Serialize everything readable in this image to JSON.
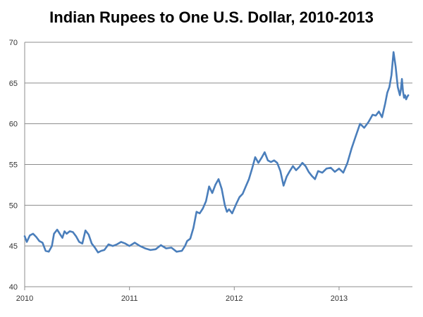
{
  "chart_data": {
    "type": "line",
    "title": "Indian Rupees to One U.S. Dollar, 2010-2013",
    "xlabel": "",
    "ylabel": "",
    "ylim": [
      40,
      70
    ],
    "y_ticks": [
      "40",
      "45",
      "50",
      "55",
      "60",
      "65",
      "70"
    ],
    "x_ticks": [
      "2010",
      "2011",
      "2012",
      "2013"
    ],
    "xlim": [
      2010.0,
      2013.7
    ],
    "grid": "horizontal",
    "colors": {
      "line": "#4a7ebb",
      "grid": "#8c8c8c"
    },
    "series": [
      {
        "x": [
          2010.0,
          2010.02,
          2010.05,
          2010.08,
          2010.11,
          2010.14,
          2010.17,
          2010.2,
          2010.23,
          2010.26,
          2010.28,
          2010.31,
          2010.34,
          2010.36,
          2010.38,
          2010.4,
          2010.43,
          2010.46,
          2010.49,
          2010.52,
          2010.55,
          2010.58,
          2010.61,
          2010.64,
          2010.67,
          2010.7,
          2010.73,
          2010.76,
          2010.8,
          2010.84,
          2010.88,
          2010.92,
          2010.96,
          2011.0,
          2011.05,
          2011.1,
          2011.15,
          2011.2,
          2011.25,
          2011.3,
          2011.35,
          2011.4,
          2011.45,
          2011.5,
          2011.53,
          2011.55,
          2011.58,
          2011.61,
          2011.64,
          2011.67,
          2011.7,
          2011.73,
          2011.76,
          2011.79,
          2011.82,
          2011.85,
          2011.88,
          2011.91,
          2011.93,
          2011.95,
          2011.98,
          2012.02,
          2012.05,
          2012.08,
          2012.11,
          2012.14,
          2012.17,
          2012.2,
          2012.23,
          2012.26,
          2012.29,
          2012.32,
          2012.35,
          2012.38,
          2012.41,
          2012.44,
          2012.47,
          2012.5,
          2012.53,
          2012.56,
          2012.59,
          2012.62,
          2012.65,
          2012.68,
          2012.71,
          2012.74,
          2012.77,
          2012.8,
          2012.84,
          2012.88,
          2012.92,
          2012.96,
          2013.0,
          2013.04,
          2013.08,
          2013.12,
          2013.16,
          2013.2,
          2013.24,
          2013.28,
          2013.32,
          2013.35,
          2013.38,
          2013.41,
          2013.44,
          2013.46,
          2013.48,
          2013.5,
          2013.52,
          2013.54,
          2013.56,
          2013.58,
          2013.59,
          2013.6,
          2013.61,
          2013.62,
          2013.63,
          2013.64,
          2013.65,
          2013.66
        ],
        "values": [
          46.2,
          45.5,
          46.3,
          46.5,
          46.1,
          45.6,
          45.4,
          44.4,
          44.3,
          45.0,
          46.5,
          47.0,
          46.4,
          46.0,
          46.8,
          46.5,
          46.8,
          46.7,
          46.2,
          45.5,
          45.3,
          46.9,
          46.4,
          45.3,
          44.8,
          44.2,
          44.4,
          44.5,
          45.2,
          45.0,
          45.2,
          45.5,
          45.3,
          45.0,
          45.4,
          45.0,
          44.7,
          44.5,
          44.6,
          45.1,
          44.7,
          44.8,
          44.3,
          44.4,
          45.0,
          45.6,
          45.9,
          47.2,
          49.2,
          49.0,
          49.6,
          50.5,
          52.3,
          51.5,
          52.5,
          53.2,
          52.0,
          50.0,
          49.2,
          49.5,
          49.0,
          50.2,
          51.0,
          51.4,
          52.3,
          53.2,
          54.5,
          55.9,
          55.2,
          55.8,
          56.5,
          55.5,
          55.3,
          55.5,
          55.2,
          54.2,
          52.4,
          53.5,
          54.2,
          54.8,
          54.3,
          54.7,
          55.2,
          54.8,
          54.1,
          53.6,
          53.2,
          54.2,
          54.0,
          54.5,
          54.6,
          54.1,
          54.5,
          54.0,
          55.2,
          57.0,
          58.5,
          60.0,
          59.5,
          60.2,
          61.1,
          61.0,
          61.5,
          60.8,
          62.5,
          63.8,
          64.5,
          66.0,
          68.8,
          67.0,
          64.5,
          63.5,
          64.2,
          65.5,
          64.0,
          63.2,
          63.5,
          63.0,
          63.3,
          63.5
        ]
      }
    ]
  }
}
